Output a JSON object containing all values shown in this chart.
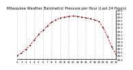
{
  "title": "Milwaukee Weather Barometric Pressure per Hour (Last 24 Hours)",
  "line_color": "#cc0000",
  "marker_color": "#000000",
  "background_color": "#ffffff",
  "grid_color": "#999999",
  "hours": [
    0,
    1,
    2,
    3,
    4,
    5,
    6,
    7,
    8,
    9,
    10,
    11,
    12,
    13,
    14,
    15,
    16,
    17,
    18,
    19,
    20,
    21,
    22,
    23
  ],
  "pressure": [
    28.5,
    28.58,
    28.68,
    28.8,
    28.95,
    29.1,
    29.22,
    29.35,
    29.45,
    29.52,
    29.57,
    29.6,
    29.62,
    29.63,
    29.62,
    29.6,
    29.58,
    29.55,
    29.52,
    29.48,
    29.3,
    29.05,
    28.75,
    28.55
  ],
  "ylim_min": 28.4,
  "ylim_max": 29.8,
  "ytick_vals": [
    28.4,
    28.5,
    28.6,
    28.7,
    28.8,
    28.9,
    29.0,
    29.1,
    29.2,
    29.3,
    29.4,
    29.5,
    29.6,
    29.7,
    29.8
  ],
  "title_fontsize": 3.8,
  "tick_fontsize": 2.8
}
